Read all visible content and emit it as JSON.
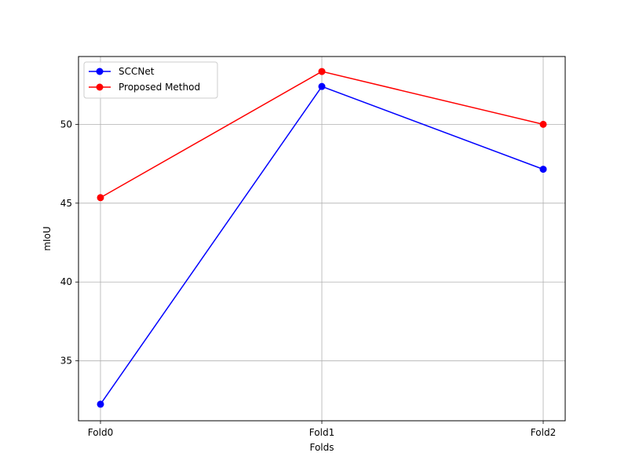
{
  "chart_data": {
    "type": "line",
    "categories": [
      "Fold0",
      "Fold1",
      "Fold2"
    ],
    "series": [
      {
        "name": "SCCNet",
        "values": [
          32.25,
          52.4,
          47.15
        ],
        "color": "#0000ff"
      },
      {
        "name": "Proposed Method",
        "values": [
          45.35,
          53.35,
          50.0
        ],
        "color": "#ff0000"
      }
    ],
    "title": "",
    "xlabel": "Folds",
    "ylabel": "mIoU",
    "ylim": [
      31.2,
      54.3
    ],
    "yticks": [
      35,
      40,
      45,
      50
    ],
    "grid": true,
    "legend_position": "upper-left"
  }
}
